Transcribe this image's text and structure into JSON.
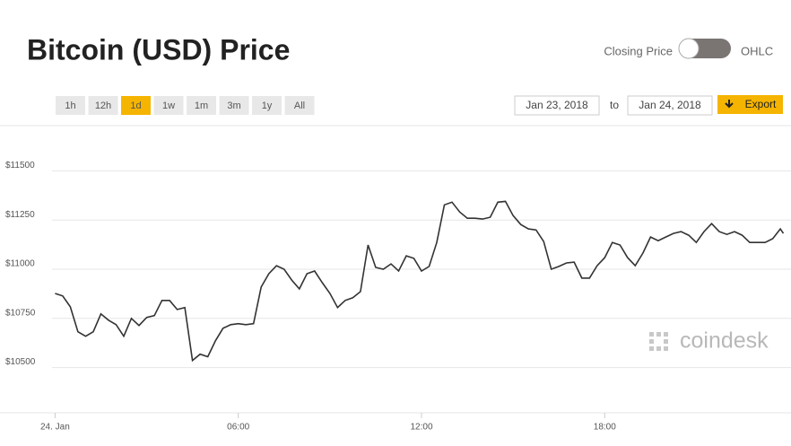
{
  "chart_data": {
    "type": "line",
    "title": "Bitcoin (USD) Price",
    "toggle": {
      "left": "Closing Price",
      "right": "OHLC"
    },
    "ranges": [
      "1h",
      "12h",
      "1d",
      "1w",
      "1m",
      "3m",
      "1y",
      "All"
    ],
    "active_range": "1d",
    "dates": {
      "from": "Jan 23, 2018",
      "separator": "to",
      "to": "Jan 24, 2018"
    },
    "export": "Export",
    "watermark": "coindesk",
    "x": [
      0,
      0.25,
      0.5,
      0.75,
      1,
      1.25,
      1.5,
      1.75,
      2,
      2.25,
      2.5,
      2.75,
      3,
      3.25,
      3.5,
      3.75,
      4,
      4.25,
      4.5,
      4.75,
      5,
      5.25,
      5.5,
      5.75,
      6,
      6.25,
      6.5,
      6.75,
      7,
      7.25,
      7.5,
      7.75,
      8,
      8.25,
      8.5,
      8.75,
      9,
      9.25,
      9.5,
      9.75,
      10,
      10.25,
      10.5,
      10.75,
      11,
      11.25,
      11.5,
      11.75,
      12,
      12.25,
      12.5,
      12.75,
      13,
      13.25,
      13.5,
      13.75,
      14,
      14.25,
      14.5,
      14.75,
      15,
      15.25,
      15.5,
      15.75,
      16,
      16.25,
      16.5,
      16.75,
      17,
      17.25,
      17.5,
      17.75,
      18,
      18.25,
      18.5,
      18.75,
      19,
      19.25,
      19.5,
      19.75,
      20,
      20.25,
      20.5,
      20.75,
      21,
      21.25,
      21.5,
      21.75,
      22,
      22.25,
      22.5,
      22.75,
      23,
      23.25,
      23.5,
      23.75,
      23.85
    ],
    "series": [
      {
        "color": "#333333",
        "values": [
          10877,
          10864,
          10809,
          10682,
          10659,
          10682,
          10773,
          10741,
          10718,
          10659,
          10750,
          10714,
          10755,
          10764,
          10841,
          10841,
          10795,
          10805,
          10536,
          10568,
          10555,
          10636,
          10700,
          10718,
          10723,
          10718,
          10723,
          10909,
          10977,
          11018,
          11000,
          10945,
          10900,
          10977,
          10991,
          10932,
          10877,
          10805,
          10841,
          10855,
          10886,
          11123,
          11009,
          11000,
          11027,
          10991,
          11068,
          11055,
          10991,
          11014,
          11136,
          11327,
          11341,
          11291,
          11259,
          11259,
          11255,
          11264,
          11341,
          11345,
          11273,
          11227,
          11205,
          11200,
          11141,
          11000,
          11014,
          11032,
          11036,
          10955,
          10955,
          11018,
          11059,
          11136,
          11123,
          11059,
          11018,
          11082,
          11164,
          11145,
          11164,
          11182,
          11191,
          11173,
          11136,
          11191,
          11232,
          11191,
          11177,
          11191,
          11173,
          11136,
          11136,
          11136,
          11155,
          11205,
          11182
        ]
      }
    ],
    "xlim": [
      -0.1,
      24.1
    ],
    "xticks": [
      {
        "value": 0,
        "label": "24. Jan"
      },
      {
        "value": 6,
        "label": "06:00"
      },
      {
        "value": 12,
        "label": "12:00"
      },
      {
        "value": 18,
        "label": "18:00"
      }
    ],
    "ylim": [
      10270,
      11730
    ],
    "yticks": [
      {
        "value": 10500,
        "label": "$10500"
      },
      {
        "value": 10750,
        "label": "$10750"
      },
      {
        "value": 11000,
        "label": "$11000"
      },
      {
        "value": 11250,
        "label": "$11250"
      },
      {
        "value": 11500,
        "label": "$11500"
      }
    ],
    "grid": true
  }
}
